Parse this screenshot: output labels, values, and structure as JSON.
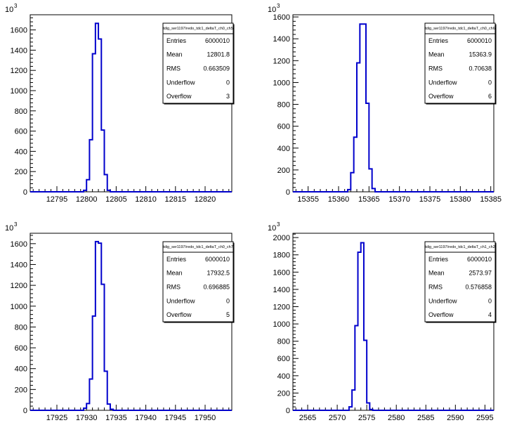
{
  "chart_data": [
    {
      "type": "histogram",
      "title": "tdig_ser1197/redo_tdc1_deltaT_ch0_ch5",
      "xlim": [
        12790.5,
        12824.5
      ],
      "ylim": [
        0,
        1750
      ],
      "y_multiplier_label": "10",
      "y_multiplier_exp": "3",
      "y_ticks": [
        0,
        200,
        400,
        600,
        800,
        1000,
        1200,
        1400,
        1600
      ],
      "x_ticks": [
        12795,
        12800,
        12805,
        12810,
        12815,
        12820
      ],
      "bin_edges": [
        12799.5,
        12800.0,
        12800.5,
        12801.0,
        12801.5,
        12802.0,
        12802.5,
        12803.0,
        12803.5,
        12804.0
      ],
      "bin_values": [
        15,
        120,
        515,
        1365,
        1665,
        1510,
        610,
        170,
        15
      ],
      "stats": [
        {
          "label": "Entries",
          "value": "6000010"
        },
        {
          "label": "Mean",
          "value": "12801.8"
        },
        {
          "label": "RMS",
          "value": "0.663509"
        },
        {
          "label": "Underflow",
          "value": "0"
        },
        {
          "label": "Overflow",
          "value": "3"
        }
      ]
    },
    {
      "type": "histogram",
      "title": "tdig_ser1197/redo_tdc1_deltaT_ch0_ch6",
      "xlim": [
        15352.5,
        15385.5
      ],
      "ylim": [
        0,
        1620
      ],
      "y_multiplier_label": "10",
      "y_multiplier_exp": "3",
      "y_ticks": [
        0,
        200,
        400,
        600,
        800,
        1000,
        1200,
        1400,
        1600
      ],
      "x_ticks": [
        15355,
        15360,
        15365,
        15370,
        15375,
        15380,
        15385
      ],
      "bin_edges": [
        15361.5,
        15362.0,
        15362.5,
        15363.0,
        15363.5,
        15364.0,
        15364.5,
        15365.0,
        15365.5,
        15366.0
      ],
      "bin_values": [
        20,
        175,
        500,
        1180,
        1535,
        1535,
        810,
        210,
        30
      ],
      "stats": [
        {
          "label": "Entries",
          "value": "6000010"
        },
        {
          "label": "Mean",
          "value": "15363.9"
        },
        {
          "label": "RMS",
          "value": "0.70638"
        },
        {
          "label": "Underflow",
          "value": "0"
        },
        {
          "label": "Overflow",
          "value": "6"
        }
      ]
    },
    {
      "type": "histogram",
      "title": "tdig_ser1197/redo_tdc1_deltaT_ch0_ch7",
      "xlim": [
        17920.5,
        17954.5
      ],
      "ylim": [
        0,
        1700
      ],
      "y_multiplier_label": "10",
      "y_multiplier_exp": "3",
      "y_ticks": [
        0,
        200,
        400,
        600,
        800,
        1000,
        1200,
        1400,
        1600
      ],
      "x_ticks": [
        17925,
        17930,
        17935,
        17940,
        17945,
        17950
      ],
      "bin_edges": [
        17929.5,
        17930.0,
        17930.5,
        17931.0,
        17931.5,
        17932.0,
        17932.5,
        17933.0,
        17933.5,
        17934.0,
        17934.5
      ],
      "bin_values": [
        20,
        65,
        300,
        905,
        1620,
        1605,
        1210,
        375,
        60,
        10
      ],
      "stats": [
        {
          "label": "Entries",
          "value": "6000010"
        },
        {
          "label": "Mean",
          "value": "17932.5"
        },
        {
          "label": "RMS",
          "value": "0.696885"
        },
        {
          "label": "Underflow",
          "value": "0"
        },
        {
          "label": "Overflow",
          "value": "5"
        }
      ]
    },
    {
      "type": "histogram",
      "title": "tdig_ser1197/redo_tdc1_deltaT_ch1_ch2",
      "xlim": [
        2562.5,
        2596.5
      ],
      "ylim": [
        0,
        2050
      ],
      "y_multiplier_label": "10",
      "y_multiplier_exp": "3",
      "y_ticks": [
        0,
        200,
        400,
        600,
        800,
        1000,
        1200,
        1400,
        1600,
        1800,
        2000
      ],
      "x_ticks": [
        2565,
        2570,
        2575,
        2580,
        2585,
        2590,
        2595
      ],
      "bin_edges": [
        2572.0,
        2572.5,
        2573.0,
        2573.5,
        2574.0,
        2574.5,
        2575.0,
        2575.5,
        2576.0
      ],
      "bin_values": [
        40,
        235,
        980,
        1830,
        1940,
        810,
        85,
        10
      ],
      "stats": [
        {
          "label": "Entries",
          "value": "6000010"
        },
        {
          "label": "Mean",
          "value": "2573.97"
        },
        {
          "label": "RMS",
          "value": "0.576858"
        },
        {
          "label": "Underflow",
          "value": "0"
        },
        {
          "label": "Overflow",
          "value": "4"
        }
      ]
    }
  ]
}
